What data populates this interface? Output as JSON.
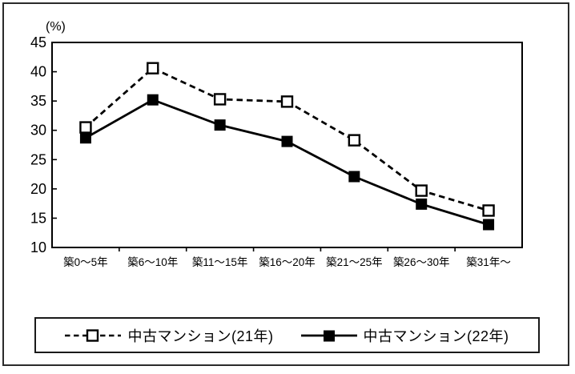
{
  "page": {
    "background": "#ffffff",
    "frame_color": "#2b2b2b"
  },
  "chart_data": {
    "type": "line",
    "title": "",
    "unit_label": "(%)",
    "xlabel": "",
    "ylabel": "(%)",
    "categories": [
      "築0～5年",
      "築6～10年",
      "築11～15年",
      "築16～20年",
      "築21～25年",
      "築26～30年",
      "築31年～"
    ],
    "series": [
      {
        "name": "中古マンション(21年)",
        "values": [
          30.5,
          40.6,
          35.3,
          34.9,
          28.3,
          19.7,
          16.3
        ],
        "line": "dashed",
        "marker": "open-square",
        "color": "#000000"
      },
      {
        "name": "中古マンション(22年)",
        "values": [
          28.7,
          35.2,
          30.9,
          28.1,
          22.1,
          17.4,
          13.9
        ],
        "line": "solid",
        "marker": "filled-square",
        "color": "#000000"
      }
    ],
    "ylim": [
      10,
      45
    ],
    "ytick_step": 5,
    "yticks": [
      45,
      40,
      35,
      30,
      25,
      20,
      15,
      10
    ],
    "grid": false,
    "legend_position": "bottom-boxed"
  }
}
